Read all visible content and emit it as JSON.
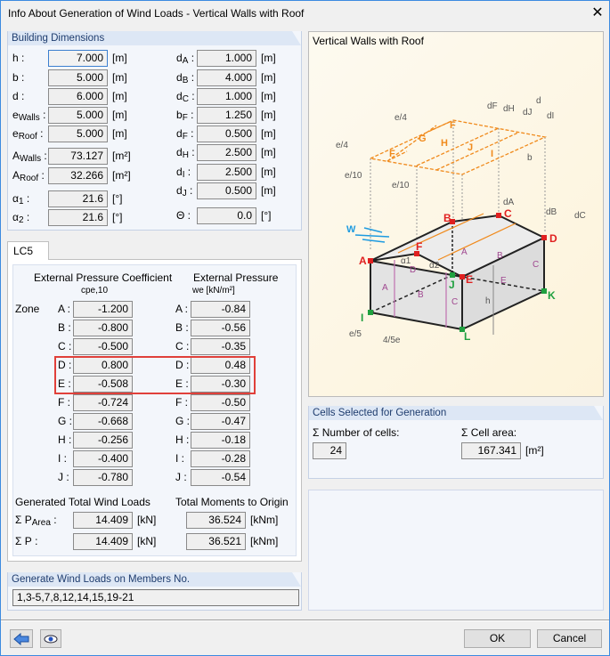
{
  "window": {
    "title": "Info About Generation of Wind Loads  -  Vertical Walls with Roof",
    "close": "✕"
  },
  "building": {
    "header": "Building Dimensions",
    "left": [
      {
        "label": "h",
        "sub": "",
        "value": "7.000",
        "unit": "[m]"
      },
      {
        "label": "b",
        "sub": "",
        "value": "5.000",
        "unit": "[m]"
      },
      {
        "label": "d",
        "sub": "",
        "value": "6.000",
        "unit": "[m]"
      },
      {
        "label": "e",
        "sub": "Walls",
        "value": "5.000",
        "unit": "[m]"
      },
      {
        "label": "e",
        "sub": "Roof",
        "value": "5.000",
        "unit": "[m]"
      },
      {
        "label": "A",
        "sub": "Walls",
        "value": "73.127",
        "unit": "[m²]"
      },
      {
        "label": "A",
        "sub": "Roof",
        "value": "32.266",
        "unit": "[m²]"
      },
      {
        "label": "α",
        "sub": "1",
        "value": "21.6",
        "unit": "[°]"
      },
      {
        "label": "α",
        "sub": "2",
        "value": "21.6",
        "unit": "[°]"
      }
    ],
    "right": [
      {
        "label": "d",
        "sub": "A",
        "value": "1.000",
        "unit": "[m]"
      },
      {
        "label": "d",
        "sub": "B",
        "value": "4.000",
        "unit": "[m]"
      },
      {
        "label": "d",
        "sub": "C",
        "value": "1.000",
        "unit": "[m]"
      },
      {
        "label": "b",
        "sub": "F",
        "value": "1.250",
        "unit": "[m]"
      },
      {
        "label": "d",
        "sub": "F",
        "value": "0.500",
        "unit": "[m]"
      },
      {
        "label": "d",
        "sub": "H",
        "value": "2.500",
        "unit": "[m]"
      },
      {
        "label": "d",
        "sub": "I",
        "value": "2.500",
        "unit": "[m]"
      },
      {
        "label": "d",
        "sub": "J",
        "value": "0.500",
        "unit": "[m]"
      },
      {
        "label": "Θ",
        "sub": "",
        "value": "0.0",
        "unit": "[°]"
      }
    ]
  },
  "lc": {
    "tab": "LC5",
    "coef_header": "External Pressure Coefficient",
    "coef_sub": "cpe,10",
    "press_header": "External Pressure",
    "press_sub": "we [kN/m²]",
    "zone_label": "Zone",
    "zones": [
      {
        "zone": "A",
        "cpe": "-1.200",
        "we": "-0.84"
      },
      {
        "zone": "B",
        "cpe": "-0.800",
        "we": "-0.56"
      },
      {
        "zone": "C",
        "cpe": "-0.500",
        "we": "-0.35"
      },
      {
        "zone": "D",
        "cpe": "0.800",
        "we": "0.48"
      },
      {
        "zone": "E",
        "cpe": "-0.508",
        "we": "-0.30"
      },
      {
        "zone": "F",
        "cpe": "-0.724",
        "we": "-0.50"
      },
      {
        "zone": "G",
        "cpe": "-0.668",
        "we": "-0.47"
      },
      {
        "zone": "H",
        "cpe": "-0.256",
        "we": "-0.18"
      },
      {
        "zone": "I",
        "cpe": "-0.400",
        "we": "-0.28"
      },
      {
        "zone": "J",
        "cpe": "-0.780",
        "we": "-0.54"
      }
    ],
    "highlight_color": "#e0403a",
    "loads_header": "Generated Total Wind Loads",
    "moments_header": "Total Moments to Origin",
    "loads": [
      {
        "label": "Σ P",
        "sub": "Area",
        "value": "14.409",
        "unit": "[kN]",
        "moment": "36.524",
        "munit": "[kNm]"
      },
      {
        "label": "Σ P",
        "sub": "",
        "value": "14.409",
        "unit": "[kN]",
        "moment": "36.521",
        "munit": "[kNm]"
      }
    ]
  },
  "members": {
    "header": "Generate Wind Loads on Members No.",
    "value": "1,3-5,7,8,12,14,15,19-21"
  },
  "diagram": {
    "title": "Vertical Walls with Roof",
    "dims": {
      "d": "d",
      "dF": "dF",
      "dH": "dH",
      "dJ": "dJ",
      "dI": "dI",
      "e4": "e/4",
      "e10": "e/10",
      "b": "b",
      "dA": "dA",
      "dB": "dB",
      "dC": "dC",
      "h": "h",
      "e5": "e/5",
      "e45": "4/5e",
      "a1": "α1",
      "a2": "α2",
      "w": "W"
    },
    "roof_zones": [
      "F",
      "G",
      "H",
      "J",
      "I",
      "F"
    ],
    "wall_zones": [
      "A",
      "B",
      "C",
      "D",
      "E",
      "A",
      "B",
      "C"
    ],
    "nodes_red": [
      "A",
      "B",
      "C",
      "D",
      "E",
      "F"
    ],
    "nodes_green": [
      "I",
      "J",
      "K",
      "L"
    ]
  },
  "cells": {
    "header": "Cells Selected for Generation",
    "count_label": "Σ Number of cells:",
    "count": "24",
    "area_label": "Σ Cell area:",
    "area": "167.341",
    "area_unit": "[m²]"
  },
  "buttons": {
    "ok": "OK",
    "cancel": "Cancel",
    "back_icon": "arrow-left-icon",
    "view_icon": "eye-icon"
  }
}
